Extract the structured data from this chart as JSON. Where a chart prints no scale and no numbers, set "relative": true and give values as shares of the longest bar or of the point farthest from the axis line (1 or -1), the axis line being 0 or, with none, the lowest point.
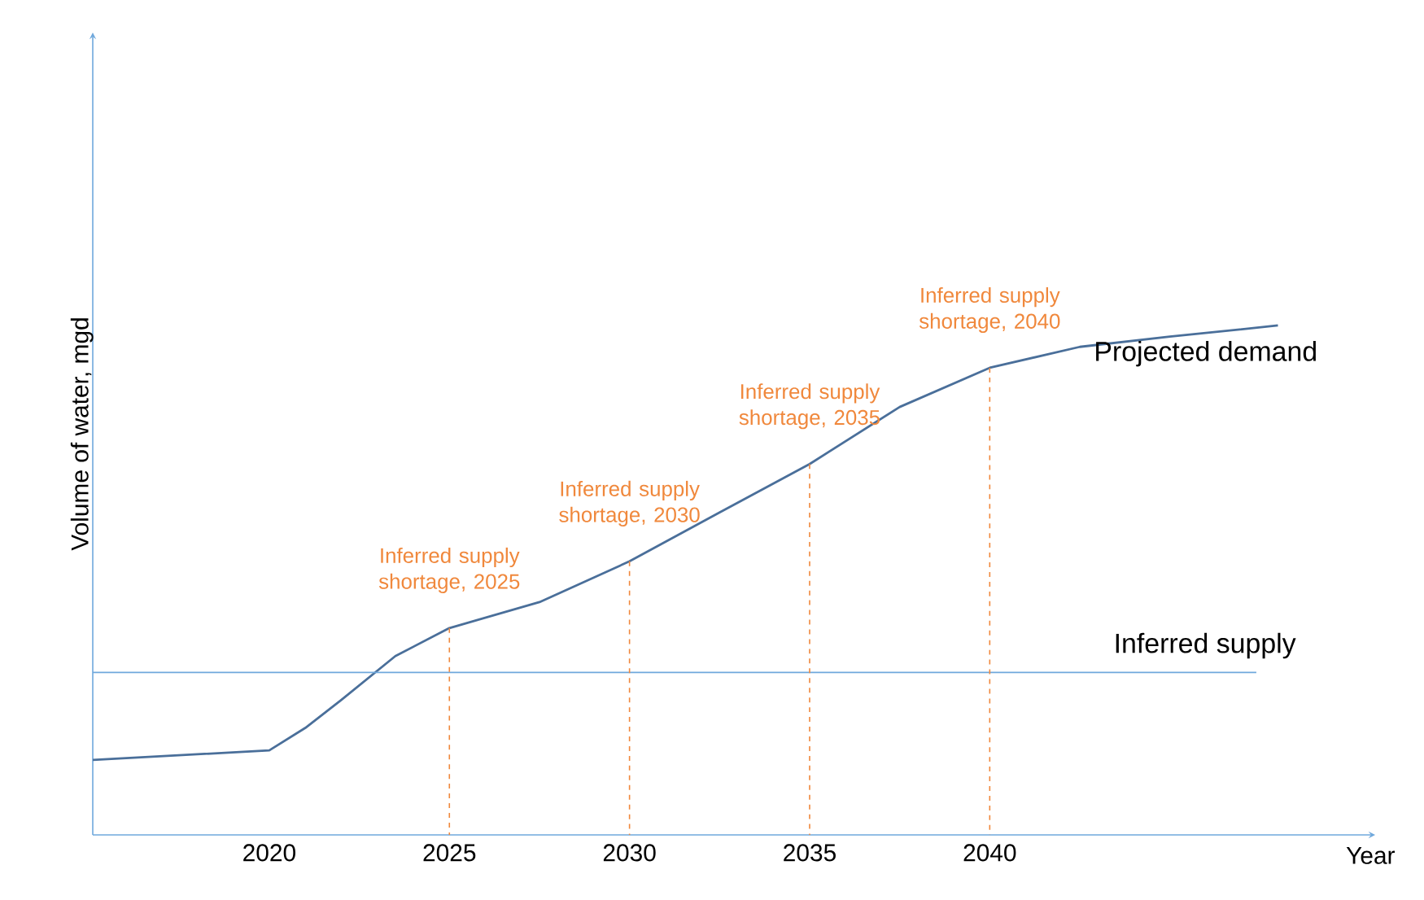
{
  "chart_data": {
    "type": "line",
    "relative": true,
    "xlabel": "Year",
    "ylabel": "Volume of water, mgd",
    "xlim": [
      2015.1,
      2050.7
    ],
    "xticks": [
      2020,
      2025,
      2030,
      2035,
      2040
    ],
    "series": [
      {
        "name": "Projected demand",
        "color": "#4a6f9a",
        "x": [
          2015.1,
          2020,
          2021,
          2022,
          2023.5,
          2025,
          2027.5,
          2030,
          2032.5,
          2035,
          2037.5,
          2040,
          2042.5,
          2045,
          2048
        ],
        "values": [
          0.147,
          0.166,
          0.21,
          0.265,
          0.351,
          0.406,
          0.457,
          0.537,
          0.633,
          0.728,
          0.84,
          0.917,
          0.958,
          0.978,
          1.0
        ]
      },
      {
        "name": "Inferred supply",
        "color": "#6fa8dc",
        "x": [
          2015.1,
          2047.4
        ],
        "values": [
          0.319,
          0.319
        ]
      }
    ],
    "annotations": [
      {
        "text": "Inferred supply shortage, 2025",
        "x": 2025,
        "y": 0.406
      },
      {
        "text": "Inferred supply shortage, 2030",
        "x": 2030,
        "y": 0.537
      },
      {
        "text": "Inferred supply shortage, 2035",
        "x": 2035,
        "y": 0.728
      },
      {
        "text": "Inferred supply shortage, 2040",
        "x": 2040,
        "y": 0.917
      }
    ]
  }
}
